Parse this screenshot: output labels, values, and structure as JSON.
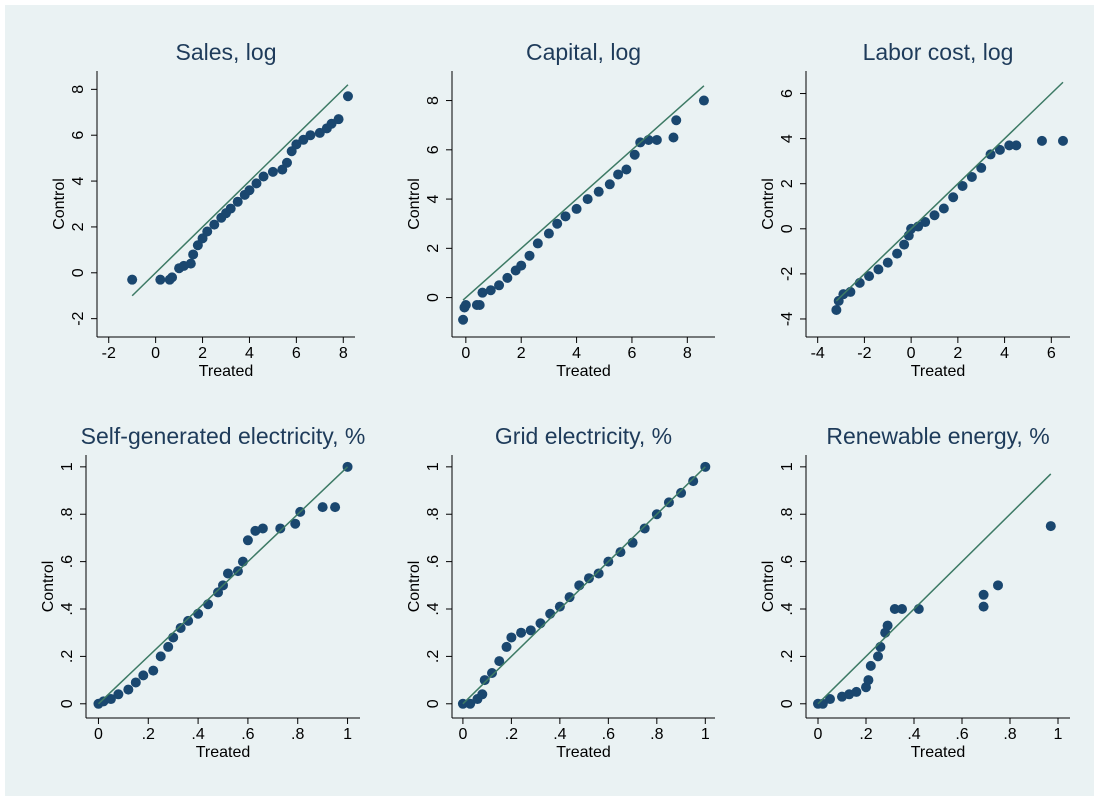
{
  "chart_data": [
    {
      "type": "qq",
      "title": "Sales, log",
      "x_label": "Treated",
      "y_label": "Control",
      "color": "#1a476f",
      "line_color": "#3d7a65",
      "x": [
        -1,
        0.2,
        0.6,
        0.7,
        1,
        1.2,
        1.5,
        1.6,
        1.8,
        2,
        2.2,
        2.5,
        2.8,
        3,
        3.2,
        3.5,
        3.8,
        4,
        4.3,
        4.6,
        5,
        5.4,
        5.6,
        5.8,
        6,
        6.3,
        6.6,
        7,
        7.3,
        7.5,
        7.8,
        8.2
      ],
      "values": [
        -0.3,
        -0.3,
        -0.3,
        -0.2,
        0.2,
        0.3,
        0.4,
        0.8,
        1.2,
        1.5,
        1.8,
        2.1,
        2.4,
        2.6,
        2.8,
        3.1,
        3.4,
        3.6,
        3.9,
        4.2,
        4.4,
        4.5,
        4.8,
        5.3,
        5.6,
        5.8,
        6,
        6.1,
        6.3,
        6.5,
        6.7,
        7.7
      ],
      "xlim": [
        -2.5,
        8.5
      ],
      "ylim": [
        -2.8,
        8.8
      ],
      "xticks": [
        -2,
        0,
        2,
        4,
        6,
        8
      ],
      "yticks": [
        -2,
        0,
        2,
        4,
        6,
        8
      ]
    },
    {
      "type": "qq",
      "title": "Capital, log",
      "x_label": "Treated",
      "y_label": "Control",
      "color": "#1a476f",
      "line_color": "#3d7a65",
      "x": [
        -0.1,
        -0.05,
        0,
        0.4,
        0.5,
        0.6,
        0.9,
        1.2,
        1.5,
        1.8,
        2,
        2.3,
        2.6,
        3,
        3.3,
        3.6,
        4,
        4.4,
        4.8,
        5.2,
        5.5,
        5.8,
        6.1,
        6.3,
        6.6,
        6.9,
        7.5,
        7.6,
        8.6
      ],
      "values": [
        -0.9,
        -0.4,
        -0.3,
        -0.3,
        -0.3,
        0.2,
        0.3,
        0.5,
        0.8,
        1.1,
        1.3,
        1.7,
        2.2,
        2.6,
        3,
        3.3,
        3.6,
        4,
        4.3,
        4.6,
        5,
        5.2,
        5.8,
        6.3,
        6.4,
        6.4,
        6.5,
        7.2,
        8
      ],
      "xlim": [
        -0.5,
        9
      ],
      "ylim": [
        -1.6,
        9.2
      ],
      "xticks": [
        0,
        2,
        4,
        6,
        8
      ],
      "yticks": [
        0,
        2,
        4,
        6,
        8
      ]
    },
    {
      "type": "qq",
      "title": "Labor cost, log",
      "x_label": "Treated",
      "y_label": "Control",
      "color": "#1a476f",
      "line_color": "#3d7a65",
      "x": [
        -3.2,
        -3.1,
        -2.9,
        -2.6,
        -2.2,
        -1.8,
        -1.4,
        -1,
        -0.6,
        -0.3,
        -0.1,
        0,
        0.3,
        0.6,
        1,
        1.4,
        1.8,
        2.2,
        2.6,
        3,
        3.4,
        3.8,
        4.2,
        4.5,
        5.6,
        6.5
      ],
      "values": [
        -3.6,
        -3.2,
        -2.9,
        -2.8,
        -2.4,
        -2.1,
        -1.8,
        -1.5,
        -1.1,
        -0.7,
        -0.3,
        0,
        0.1,
        0.3,
        0.6,
        0.9,
        1.4,
        1.9,
        2.3,
        2.7,
        3.3,
        3.5,
        3.7,
        3.7,
        3.9,
        3.9
      ],
      "xlim": [
        -4.5,
        6.8
      ],
      "ylim": [
        -4.8,
        7
      ],
      "xticks": [
        -4,
        -2,
        0,
        2,
        4,
        6
      ],
      "yticks": [
        -4,
        -2,
        0,
        2,
        4,
        6
      ]
    },
    {
      "type": "qq",
      "title": "Self-generated electricity, %",
      "x_label": "Treated",
      "y_label": "Control",
      "color": "#1a476f",
      "line_color": "#3d7a65",
      "x": [
        0,
        0.02,
        0.05,
        0.08,
        0.12,
        0.15,
        0.18,
        0.22,
        0.25,
        0.28,
        0.3,
        0.33,
        0.36,
        0.4,
        0.44,
        0.48,
        0.5,
        0.52,
        0.56,
        0.58,
        0.6,
        0.63,
        0.66,
        0.73,
        0.79,
        0.81,
        0.9,
        0.95,
        1
      ],
      "values": [
        0,
        0.01,
        0.02,
        0.04,
        0.06,
        0.09,
        0.12,
        0.14,
        0.2,
        0.24,
        0.28,
        0.32,
        0.35,
        0.38,
        0.42,
        0.47,
        0.5,
        0.55,
        0.56,
        0.6,
        0.69,
        0.73,
        0.74,
        0.74,
        0.76,
        0.81,
        0.83,
        0.83,
        1
      ],
      "xlim": [
        -0.05,
        1.05
      ],
      "ylim": [
        -0.06,
        1.05
      ],
      "xticks": [
        0,
        {
          "value": 0.2,
          "label": ".2"
        },
        {
          "value": 0.4,
          "label": ".4"
        },
        {
          "value": 0.6,
          "label": ".6"
        },
        {
          "value": 0.8,
          "label": ".8"
        },
        1
      ],
      "yticks": [
        0,
        {
          "value": 0.2,
          "label": ".2"
        },
        {
          "value": 0.4,
          "label": ".4"
        },
        {
          "value": 0.6,
          "label": ".6"
        },
        {
          "value": 0.8,
          "label": ".8"
        },
        1
      ]
    },
    {
      "type": "qq",
      "title": "Grid electricity, %",
      "x_label": "Treated",
      "y_label": "Control",
      "color": "#1a476f",
      "line_color": "#3d7a65",
      "x": [
        0,
        0.03,
        0.06,
        0.08,
        0.09,
        0.12,
        0.15,
        0.18,
        0.2,
        0.24,
        0.28,
        0.32,
        0.36,
        0.4,
        0.44,
        0.48,
        0.52,
        0.56,
        0.6,
        0.65,
        0.7,
        0.75,
        0.8,
        0.85,
        0.9,
        0.95,
        1
      ],
      "values": [
        0,
        0,
        0.02,
        0.04,
        0.1,
        0.13,
        0.18,
        0.24,
        0.28,
        0.3,
        0.31,
        0.34,
        0.38,
        0.41,
        0.45,
        0.5,
        0.53,
        0.55,
        0.6,
        0.64,
        0.68,
        0.74,
        0.8,
        0.85,
        0.89,
        0.94,
        1
      ],
      "xlim": [
        -0.045,
        1.04
      ],
      "ylim": [
        -0.06,
        1.05
      ],
      "xticks": [
        0,
        {
          "value": 0.2,
          "label": ".2"
        },
        {
          "value": 0.4,
          "label": ".4"
        },
        {
          "value": 0.6,
          "label": ".6"
        },
        {
          "value": 0.8,
          "label": ".8"
        },
        1
      ],
      "yticks": [
        0,
        {
          "value": 0.2,
          "label": ".2"
        },
        {
          "value": 0.4,
          "label": ".4"
        },
        {
          "value": 0.6,
          "label": ".6"
        },
        {
          "value": 0.8,
          "label": ".8"
        },
        1
      ]
    },
    {
      "type": "qq",
      "title": "Renewable energy, %",
      "x_label": "Treated",
      "y_label": "Control",
      "color": "#1a476f",
      "line_color": "#3d7a65",
      "x": [
        0,
        0.02,
        0.05,
        0.1,
        0.13,
        0.16,
        0.2,
        0.21,
        0.22,
        0.25,
        0.26,
        0.28,
        0.29,
        0.32,
        0.35,
        0.42,
        0.69,
        0.69,
        0.75,
        0.97
      ],
      "values": [
        0,
        0,
        0.02,
        0.03,
        0.04,
        0.05,
        0.07,
        0.1,
        0.16,
        0.2,
        0.24,
        0.3,
        0.33,
        0.4,
        0.4,
        0.4,
        0.41,
        0.46,
        0.5,
        0.75
      ],
      "xlim": [
        -0.05,
        1.05
      ],
      "ylim": [
        -0.06,
        1.05
      ],
      "xticks": [
        0,
        {
          "value": 0.2,
          "label": ".2"
        },
        {
          "value": 0.4,
          "label": ".4"
        },
        {
          "value": 0.6,
          "label": ".6"
        },
        {
          "value": 0.8,
          "label": ".8"
        },
        1
      ],
      "yticks": [
        0,
        {
          "value": 0.2,
          "label": ".2"
        },
        {
          "value": 0.4,
          "label": ".4"
        },
        {
          "value": 0.6,
          "label": ".6"
        },
        {
          "value": 0.8,
          "label": ".8"
        },
        1
      ]
    }
  ]
}
